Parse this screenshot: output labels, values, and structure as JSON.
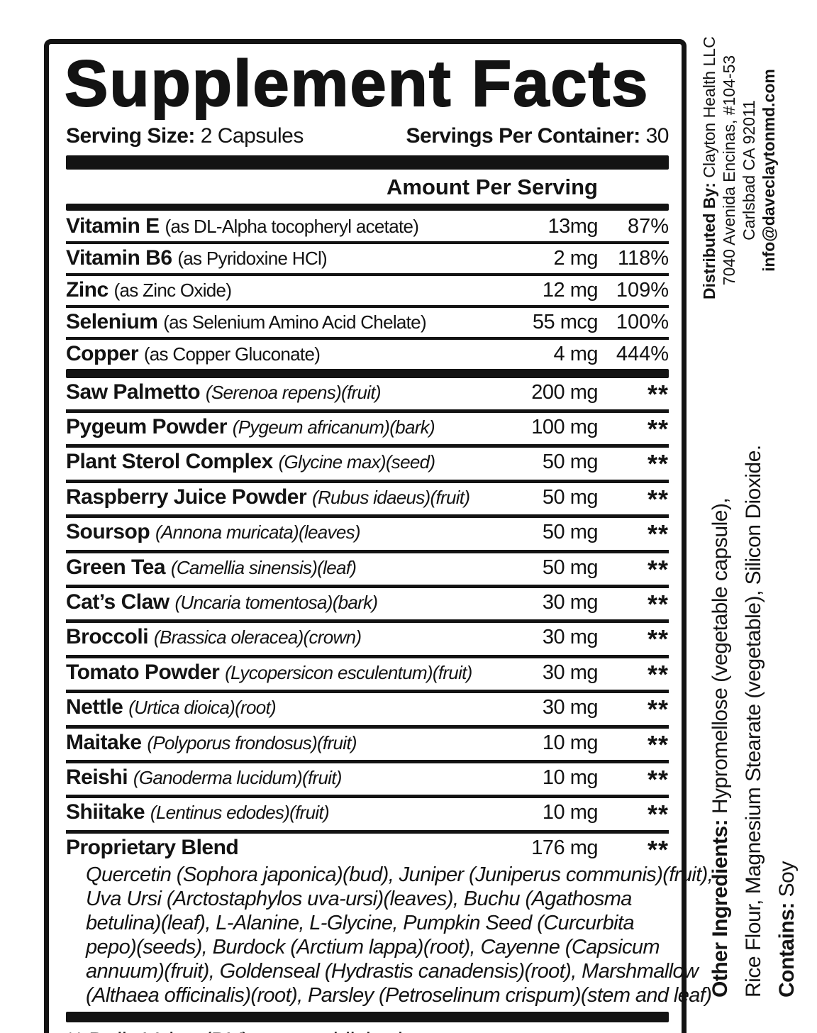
{
  "title": "Supplement Facts",
  "serving": {
    "size_label": "Serving Size:",
    "size_value": "2 Capsules",
    "per_container_label": "Servings Per Container:",
    "per_container_value": "30"
  },
  "amount_header": "Amount Per Serving",
  "nutrients": [
    {
      "name": "Vitamin E",
      "detail": "(as DL-Alpha tocopheryl acetate)",
      "amount": "13mg",
      "dv": "87%"
    },
    {
      "name": "Vitamin B6",
      "detail": "(as Pyridoxine HCl)",
      "amount": "2 mg",
      "dv": "118%"
    },
    {
      "name": "Zinc",
      "detail": "(as Zinc Oxide)",
      "amount": "12 mg",
      "dv": "109%"
    },
    {
      "name": "Selenium",
      "detail": "(as Selenium Amino Acid Chelate)",
      "amount": "55 mcg",
      "dv": "100%"
    },
    {
      "name": "Copper",
      "detail": "(as Copper Gluconate)",
      "amount": "4 mg",
      "dv": "444%"
    }
  ],
  "botanicals": [
    {
      "name": "Saw Palmetto",
      "detail": "(Serenoa repens)(fruit)",
      "amount": "200 mg",
      "dv": "**"
    },
    {
      "name": "Pygeum Powder",
      "detail": "(Pygeum africanum)(bark)",
      "amount": "100 mg",
      "dv": "**"
    },
    {
      "name": "Plant Sterol Complex",
      "detail": "(Glycine max)(seed)",
      "amount": "50 mg",
      "dv": "**"
    },
    {
      "name": "Raspberry Juice Powder",
      "detail": "(Rubus idaeus)(fruit)",
      "amount": "50 mg",
      "dv": "**"
    },
    {
      "name": "Soursop",
      "detail": "(Annona muricata)(leaves)",
      "amount": "50 mg",
      "dv": "**"
    },
    {
      "name": "Green Tea",
      "detail": "(Camellia sinensis)(leaf)",
      "amount": "50 mg",
      "dv": "**"
    },
    {
      "name": "Cat’s Claw",
      "detail": "(Uncaria tomentosa)(bark)",
      "amount": "30 mg",
      "dv": "**"
    },
    {
      "name": "Broccoli",
      "detail": "(Brassica oleracea)(crown)",
      "amount": "30 mg",
      "dv": "**"
    },
    {
      "name": "Tomato Powder",
      "detail": "(Lycopersicon esculentum)(fruit)",
      "amount": "30 mg",
      "dv": "**"
    },
    {
      "name": "Nettle",
      "detail": "(Urtica dioica)(root)",
      "amount": "30 mg",
      "dv": "**"
    },
    {
      "name": "Maitake",
      "detail": "(Polyporus frondosus)(fruit)",
      "amount": "10 mg",
      "dv": "**"
    },
    {
      "name": "Reishi",
      "detail": "(Ganoderma lucidum)(fruit)",
      "amount": "10 mg",
      "dv": "**"
    },
    {
      "name": "Shiitake",
      "detail": "(Lentinus edodes)(fruit)",
      "amount": "10 mg",
      "dv": "**"
    }
  ],
  "blend": {
    "name": "Proprietary Blend",
    "amount": "176 mg",
    "dv": "**",
    "lines": [
      "Quercetin (Sophora japonica)(bud), Juniper (Juniperus communis)(fruit),",
      "Uva Ursi (Arctostaphylos uva-ursi)(leaves), Buchu (Agathosma",
      "betulina)(leaf), L-Alanine, L-Glycine, Pumpkin Seed (Curcurbita",
      "pepo)(seeds), Burdock (Arctium lappa)(root), Cayenne (Capsicum",
      "annuum)(fruit), Goldenseal (Hydrastis canadensis)(root), Marshmallow",
      "(Althaea officinalis)(root), Parsley (Petroselinum crispum)(stem and leaf)"
    ]
  },
  "footnote": "** Daily Value (DV) not established.",
  "distributor": {
    "label": "Distributed By:",
    "name": "Clayton Health LLC",
    "address1": "7040 Avenida Encinas, #104-53",
    "address2": "Carlsbad CA 92011",
    "email": "info@daveclaytonmd.com"
  },
  "other_ingredients": {
    "label": "Other Ingredients:",
    "line1": "Hypromellose (vegetable capsule),",
    "line2": "Rice Flour, Magnesium Stearate (vegetable), Silicon Dioxide."
  },
  "contains": {
    "label": "Contains:",
    "value": "Soy"
  },
  "colors": {
    "ink": "#131313",
    "paper": "#ffffff"
  }
}
